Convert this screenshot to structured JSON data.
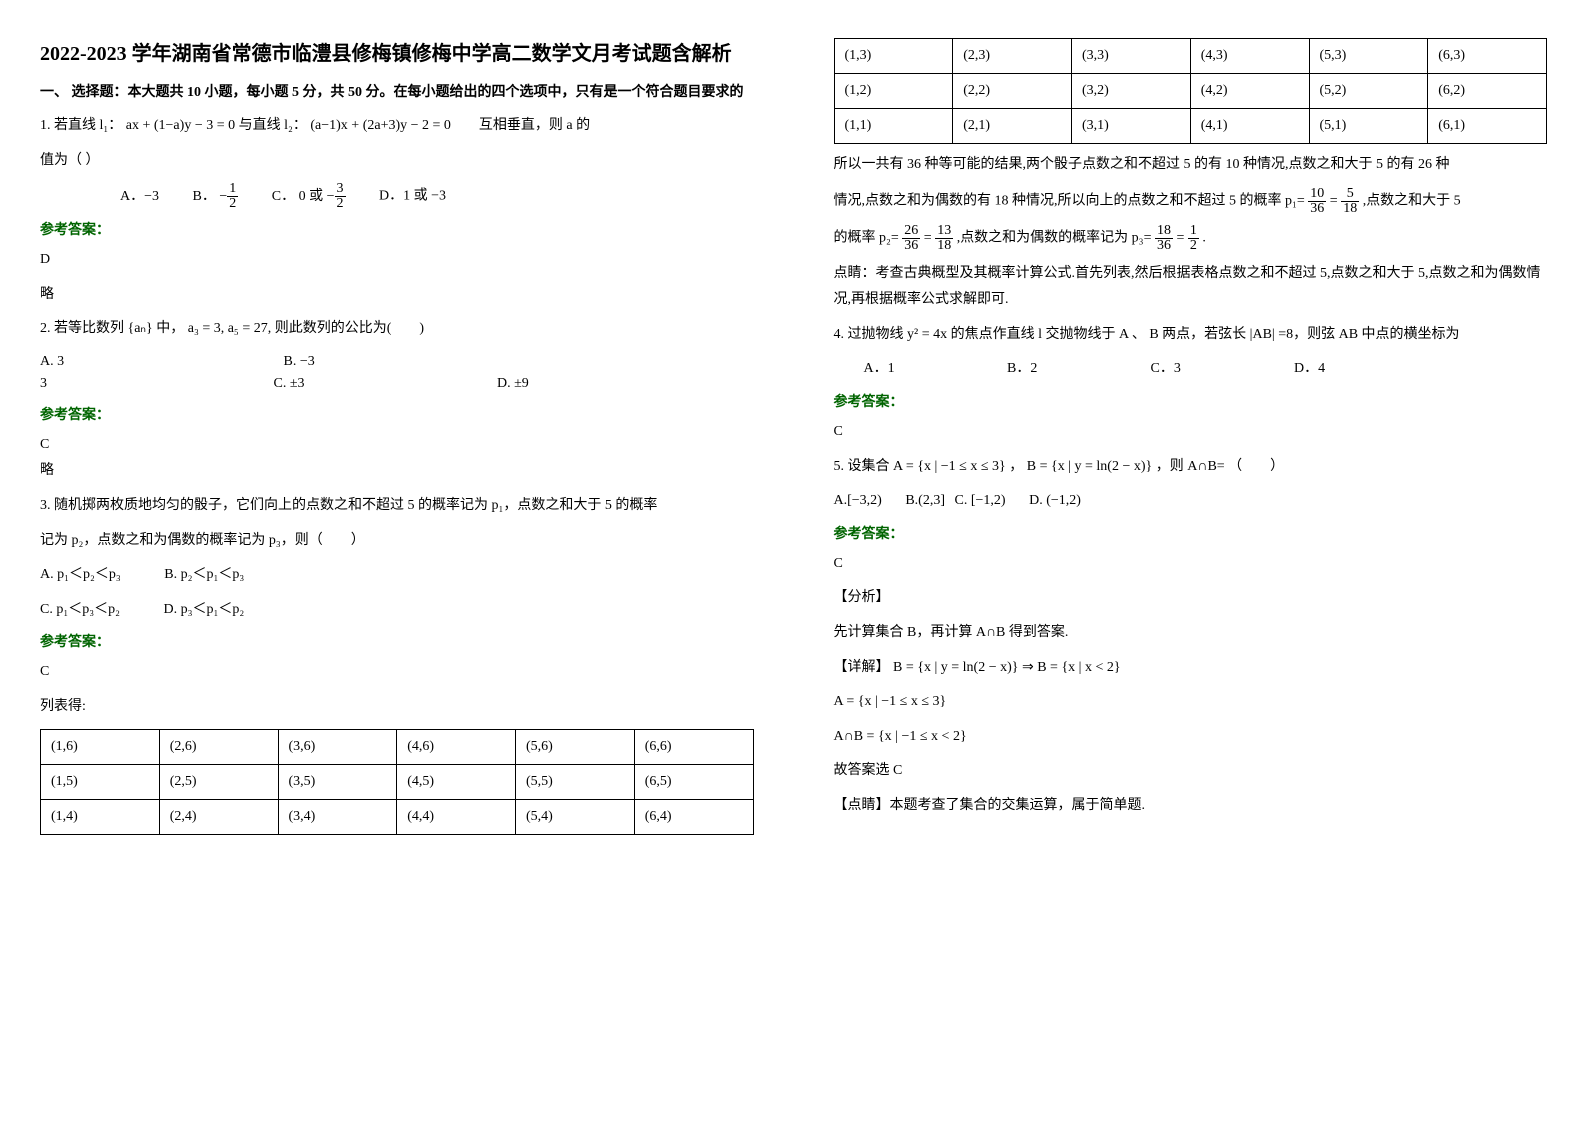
{
  "title": "2022-2023 学年湖南省常德市临澧县修梅镇修梅中学高二数学文月考试题含解析",
  "section1_intro": "一、 选择题：本大题共 10 小题，每小题 5 分，共 50 分。在每小题给出的四个选项中，只有是一个符合题目要求的",
  "q1": {
    "stem_a": "1. 若直线 l₁： ax + (1−a)y − 3 = 0 与直线 l₂： (a−1)x + (2a+3)y − 2 = 0　　互相垂直，则 a 的",
    "stem_b": "值为（ ）",
    "optA": "A．−3",
    "optB_prefix": "B．",
    "optB_neg": "−",
    "optB_num": "1",
    "optB_den": "2",
    "optC_prefix": "C．",
    "optC_0": "0 或",
    "optC_neg": "−",
    "optC_num": "3",
    "optC_den": "2",
    "optD": "D．1 或 −3",
    "answer_label": "参考答案：",
    "answer": "D",
    "omit": "略"
  },
  "q2": {
    "stem": "2. 若等比数列 {aₙ} 中， a₃ = 3, a₅ = 27, 则此数列的公比为(　　)",
    "optA": "A. 3",
    "optB": "B. −3",
    "optC": "C. ±3",
    "optD": "D. ±9",
    "answer_label": "参考答案：",
    "answer": "C",
    "omit": "略"
  },
  "q3": {
    "stem1": "3. 随机掷两枚质地均匀的骰子，它们向上的点数之和不超过 5 的概率记为 p₁，点数之和大于 5 的概率",
    "stem2": "记为 p₂，点数之和为偶数的概率记为 p₃，则（　　）",
    "optA": "A. p₁＜p₂＜p₃",
    "optB": "B. p₂＜p₁＜p₃",
    "optC": "C. p₁＜p₃＜p₂",
    "optD": "D. p₃＜p₁＜p₂",
    "answer_label": "参考答案：",
    "answer": "C",
    "list_label": "列表得:"
  },
  "table_a": {
    "rows": [
      [
        "(1,6)",
        "(2,6)",
        "(3,6)",
        "(4,6)",
        "(5,6)",
        "(6,6)"
      ],
      [
        "(1,5)",
        "(2,5)",
        "(3,5)",
        "(4,5)",
        "(5,5)",
        "(6,5)"
      ],
      [
        "(1,4)",
        "(2,4)",
        "(3,4)",
        "(4,4)",
        "(5,4)",
        "(6,4)"
      ]
    ]
  },
  "table_b": {
    "rows": [
      [
        "(1,3)",
        "(2,3)",
        "(3,3)",
        "(4,3)",
        "(5,3)",
        "(6,3)"
      ],
      [
        "(1,2)",
        "(2,2)",
        "(3,2)",
        "(4,2)",
        "(5,2)",
        "(6,2)"
      ],
      [
        "(1,1)",
        "(2,1)",
        "(3,1)",
        "(4,1)",
        "(5,1)",
        "(6,1)"
      ]
    ]
  },
  "expl": {
    "line1": "所以一共有 36 种等可能的结果,两个骰子点数之和不超过 5 的有 10 种情况,点数之和大于 5 的有 26 种",
    "line2a": "情况,点数之和为偶数的有 18 种情况,所以向上的点数之和不超过 5 的概率 p₁=",
    "f1_num": "10",
    "f1_den": "36",
    "eq1": " = ",
    "f2_num": "5",
    "f2_den": "18",
    "line2b": " ,点数之和大于 5",
    "line3a": "的概率 p₂=",
    "f3_num": "26",
    "f3_den": "36",
    "eq2": " = ",
    "f4_num": "13",
    "f4_den": "18",
    "line3b": " ,点数之和为偶数的概率记为 p₃=",
    "f5_num": "18",
    "f5_den": "36",
    "eq3": " = ",
    "f6_num": "1",
    "f6_den": "2",
    "line3c": " .",
    "line4": "点睛：考查古典概型及其概率计算公式.首先列表,然后根据表格点数之和不超过 5,点数之和大于 5,点数之和为偶数情况,再根据概率公式求解即可."
  },
  "q4": {
    "stem": "4. 过抛物线 y² = 4x 的焦点作直线 l 交抛物线于 A 、 B 两点，若弦长 |AB| =8，则弦 AB 中点的横坐标为",
    "optA": "A．1",
    "optB": "B．2",
    "optC": "C．3",
    "optD": "D．4",
    "answer_label": "参考答案：",
    "answer": "C"
  },
  "q5": {
    "stem": "5. 设集合 A = {x | −1 ≤ x ≤ 3} ， B = {x | y = ln(2 − x)} ，则 A∩B= （　　）",
    "optA": "A.[−3,2)",
    "optB": "B.(2,3]",
    "optC": "C. [−1,2)",
    "optD": "D. (−1,2)",
    "answer_label": "参考答案：",
    "answer": "C",
    "fenxi": "【分析】",
    "fenxi_txt": "先计算集合 B，再计算 A∩B 得到答案.",
    "xiangjie": "【详解】 B = {x | y = ln(2 − x)} ⇒ B = {x | x < 2}",
    "setA": "A = {x | −1 ≤ x ≤ 3}",
    "setAB": "A∩B = {x | −1 ≤ x < 2}",
    "gu": "故答案选 C",
    "dianjing": "【点睛】本题考查了集合的交集运算，属于简单题."
  }
}
